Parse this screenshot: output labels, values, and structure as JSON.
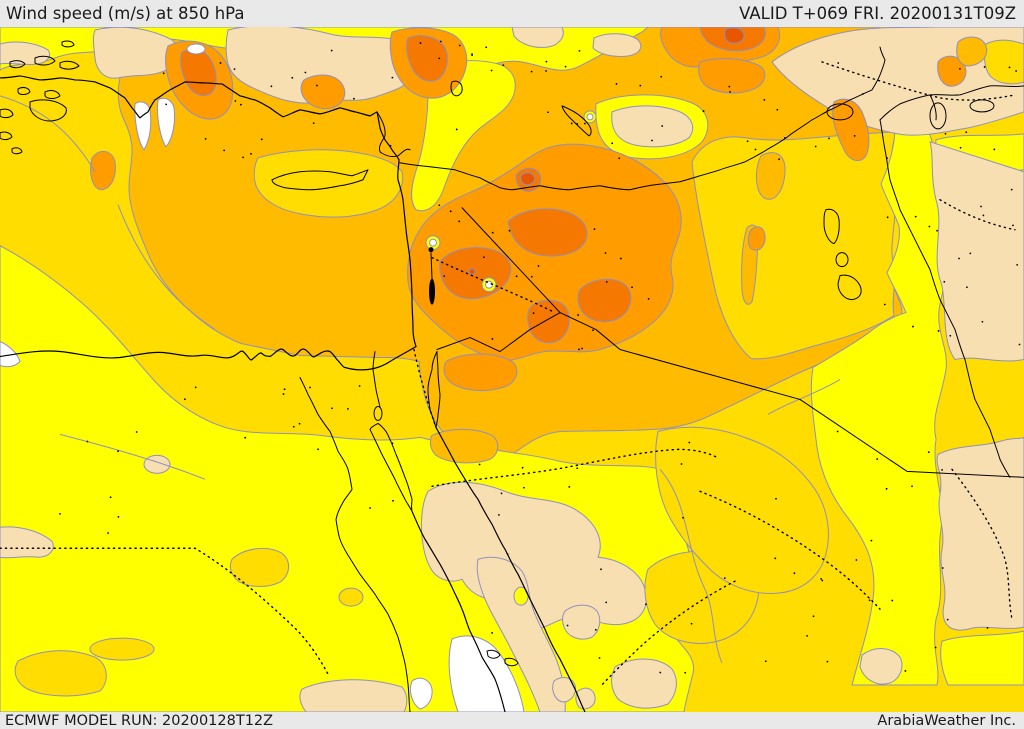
{
  "header": {
    "title": "Wind speed (m/s) at 850 hPa",
    "valid": "VALID T+069 FRI. 20200131T09Z"
  },
  "footer": {
    "model_run": "ECMWF MODEL RUN: 20200128T12Z",
    "branding": "ArabiaWeather Inc."
  },
  "map": {
    "variable": "Wind speed (m/s)",
    "level": "850 hPa",
    "palette": {
      "calm": "#ffffff",
      "cream": "#f8dfb2",
      "yellow": "#ffff00",
      "gold": "#ffdd00",
      "amber": "#ffbb00",
      "orange": "#ff9c00",
      "deep_orange": "#f57800",
      "red_orange": "#e85600",
      "contour": "#9090c0",
      "geo_border": "#000000",
      "bar_bg": "#e9e9e9",
      "bar_text": "#1a1a1a"
    }
  }
}
